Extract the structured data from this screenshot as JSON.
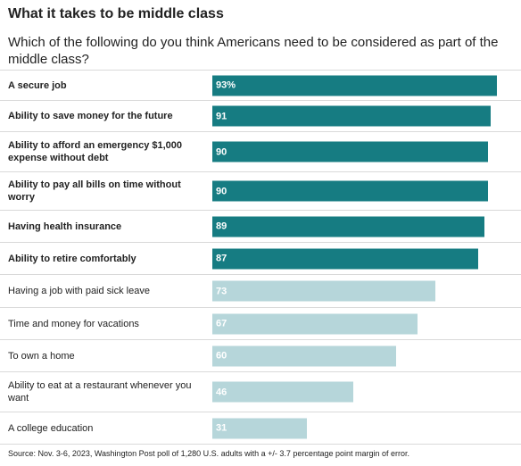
{
  "chart_data": {
    "type": "bar",
    "orientation": "horizontal",
    "title": "What it takes to be middle class",
    "subtitle": "Which of the following do you think Americans need to be considered as part of the middle class?",
    "source": "Source: Nov. 3-6, 2023, Washington Post poll of 1,280 U.S. adults with a +/- 3.7 percentage point margin of error.",
    "categories": [
      "A secure job",
      "Ability to save money for the future",
      "Ability to afford an emergency $1,000 expense without debt",
      "Ability to pay all bills on time without worry",
      "Having health insurance",
      "Ability to retire comfortably",
      "Having a job with paid sick leave",
      "Time and money for vacations",
      "To own a home",
      "Ability to eat at a restaurant whenever you want",
      "A college education"
    ],
    "values": [
      93,
      91,
      90,
      90,
      89,
      87,
      73,
      67,
      60,
      46,
      31
    ],
    "value_labels": [
      "93%",
      "91",
      "90",
      "90",
      "89",
      "87",
      "73",
      "67",
      "60",
      "46",
      "31"
    ],
    "highlight": [
      true,
      true,
      true,
      true,
      true,
      true,
      false,
      false,
      false,
      false,
      false
    ],
    "xlim": [
      0,
      100
    ],
    "colors": {
      "highlight_bar": "#167c82",
      "other_bar": "#b6d6da"
    }
  }
}
